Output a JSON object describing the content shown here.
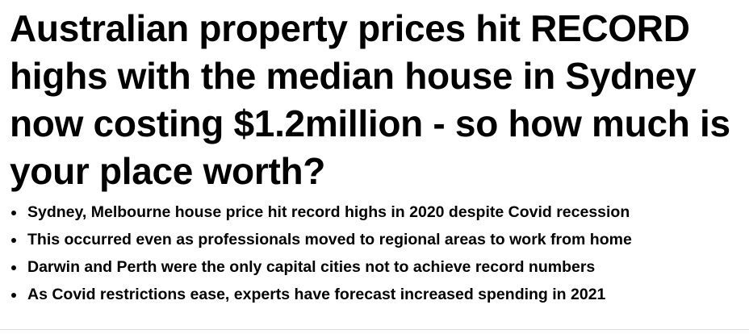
{
  "headline": "Australian property prices hit RECORD highs with the median house in Sydney now costing $1.2million - so how much is your place worth?",
  "bullets": [
    "Sydney, Melbourne house price hit record highs in 2020 despite Covid recession",
    "This occurred even as professionals moved to regional areas to work from home",
    "Darwin and Perth were the only capital cities not to achieve record numbers",
    "As Covid restrictions ease, experts have forecast increased spending in 2021"
  ]
}
